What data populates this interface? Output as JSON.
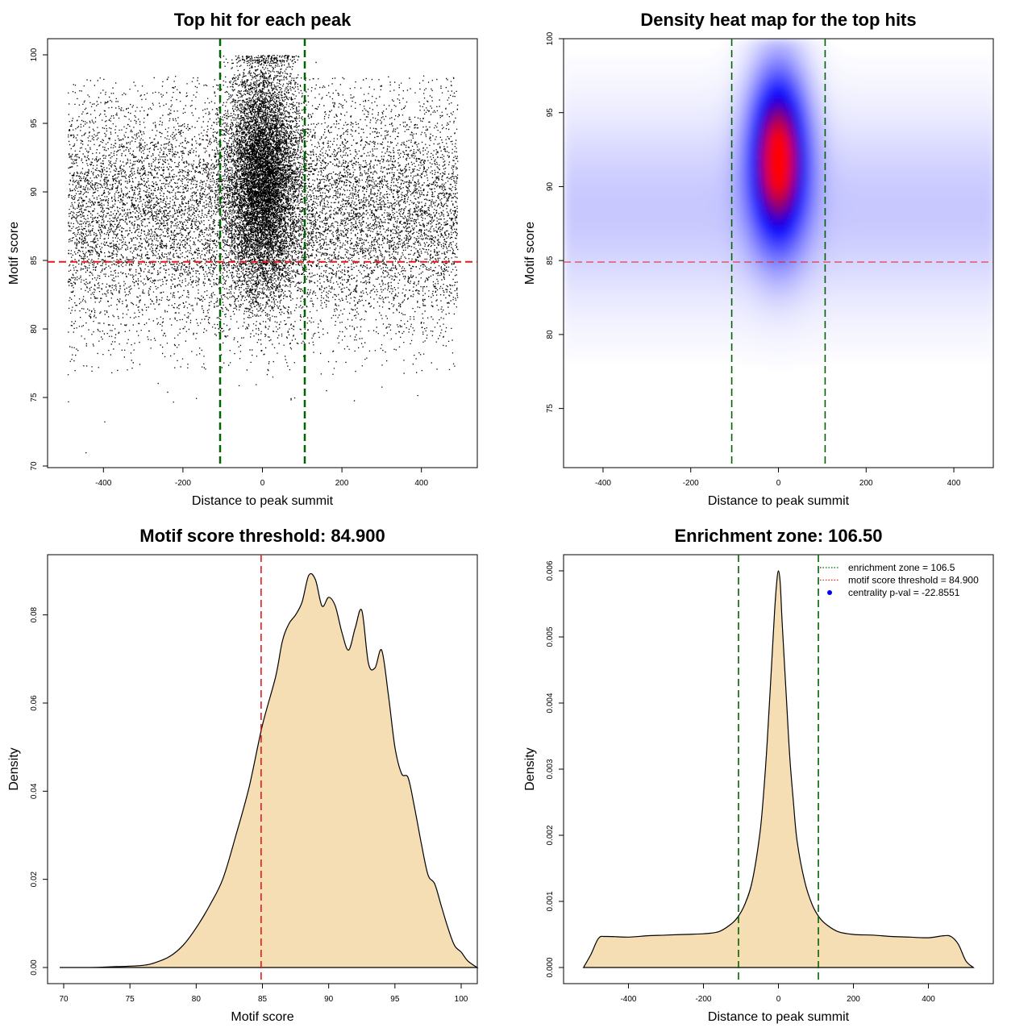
{
  "chart_data": [
    {
      "type": "scatter",
      "title": "Top hit for each peak",
      "xlabel": "Distance to peak summit",
      "ylabel": "Motif score",
      "xlim": [
        -500,
        500
      ],
      "ylim": [
        70,
        100
      ],
      "xticks": [
        -400,
        -200,
        0,
        200,
        400
      ],
      "yticks": [
        70,
        75,
        80,
        85,
        90,
        95,
        100
      ],
      "point_color": "#000000",
      "vlines": [
        {
          "x": -106.5,
          "color": "#006400"
        },
        {
          "x": 106.5,
          "color": "#006400"
        }
      ],
      "hlines": [
        {
          "y": 84.9,
          "color": "#e31a1c"
        }
      ],
      "distribution": {
        "background": {
          "x_range": [
            -490,
            490
          ],
          "score_mean": 88.5,
          "score_sd": 4.5
        },
        "central": {
          "x_mean": 0,
          "x_sd": 45,
          "score_mean": 91,
          "score_sd": 4.2
        },
        "outliers": [
          {
            "x": -445,
            "y": 71.0
          },
          {
            "x": -490,
            "y": 76.7
          },
          {
            "x": -225,
            "y": 74.7
          },
          {
            "x": -60,
            "y": 75.9
          },
          {
            "x": 80,
            "y": 75.0
          },
          {
            "x": 230,
            "y": 74.8
          },
          {
            "x": 400,
            "y": 77.0
          },
          {
            "x": 355,
            "y": 76.8
          },
          {
            "x": 300,
            "y": 77.4
          }
        ]
      }
    },
    {
      "type": "heatmap",
      "title": "Density heat map for the top hits",
      "xlabel": "Distance to peak summit",
      "ylabel": "Motif score",
      "xlim": [
        -490,
        490
      ],
      "ylim": [
        71,
        100
      ],
      "xticks": [
        -400,
        -200,
        0,
        200,
        400
      ],
      "yticks": [
        75,
        80,
        85,
        90,
        95,
        100
      ],
      "colors": [
        "#ffffff",
        "#0000ff",
        "#ff0000"
      ],
      "vlines": [
        {
          "x": -106.5,
          "color": "#006400"
        },
        {
          "x": 106.5,
          "color": "#006400"
        }
      ],
      "hlines": [
        {
          "y": 84.9,
          "color": "#e31a1c"
        }
      ],
      "density": {
        "background": {
          "score_mean": 88.5,
          "score_sd": 4.5
        },
        "central": {
          "x_mean": 0,
          "x_sd": 45,
          "score_mean": 92,
          "score_sd": 4.0
        }
      }
    },
    {
      "type": "area",
      "title": "Motif score threshold: 84.900",
      "xlabel": "Motif score",
      "ylabel": "Density",
      "xlim": [
        70,
        100
      ],
      "ylim": [
        0,
        0.09
      ],
      "xticks": [
        70,
        75,
        80,
        85,
        90,
        95,
        100
      ],
      "yticks": [
        0.0,
        0.02,
        0.04,
        0.06,
        0.08
      ],
      "ytick_labels": [
        "0.00",
        "0.02",
        "0.04",
        "0.06",
        "0.08"
      ],
      "fill_color": "#f5deb3",
      "line_color": "#000000",
      "vlines": [
        {
          "x": 84.9,
          "color": "#e31a1c"
        }
      ],
      "x": [
        69.7,
        72,
        74,
        76,
        77,
        78,
        79,
        80,
        81,
        82,
        83,
        84,
        85,
        86,
        86.5,
        87,
        87.5,
        88,
        88.5,
        89,
        89.5,
        90,
        90.5,
        91,
        91.5,
        92,
        92.5,
        93,
        93.5,
        94,
        94.5,
        95,
        95.5,
        96,
        96.5,
        97,
        97.5,
        98,
        98.5,
        99,
        99.5,
        100,
        100.5,
        101.2
      ],
      "y": [
        0.0,
        0.0,
        0.0002,
        0.0005,
        0.0012,
        0.0025,
        0.005,
        0.009,
        0.014,
        0.02,
        0.03,
        0.041,
        0.055,
        0.066,
        0.074,
        0.078,
        0.08,
        0.083,
        0.089,
        0.088,
        0.082,
        0.084,
        0.082,
        0.076,
        0.072,
        0.077,
        0.081,
        0.069,
        0.068,
        0.072,
        0.062,
        0.05,
        0.044,
        0.043,
        0.036,
        0.028,
        0.021,
        0.019,
        0.014,
        0.009,
        0.005,
        0.0035,
        0.0015,
        0.0
      ]
    },
    {
      "type": "area",
      "title": "Enrichment zone: 106.50",
      "xlabel": "Distance to peak summit",
      "ylabel": "Density",
      "xlim": [
        -530,
        530
      ],
      "ylim": [
        0,
        0.006
      ],
      "xticks": [
        -400,
        -200,
        0,
        200,
        400
      ],
      "yticks": [
        0.0,
        0.001,
        0.002,
        0.003,
        0.004,
        0.005,
        0.006
      ],
      "ytick_labels": [
        "0.000",
        "0.001",
        "0.002",
        "0.003",
        "0.004",
        "0.005",
        "0.006"
      ],
      "fill_color": "#f5deb3",
      "line_color": "#000000",
      "vlines": [
        {
          "x": -106.5,
          "color": "#006400"
        },
        {
          "x": 106.5,
          "color": "#006400"
        }
      ],
      "x": [
        -520,
        -500,
        -480,
        -460,
        -400,
        -350,
        -300,
        -250,
        -200,
        -160,
        -130,
        -110,
        -90,
        -70,
        -50,
        -40,
        -30,
        -20,
        -10,
        -5,
        0,
        5,
        10,
        20,
        30,
        40,
        50,
        70,
        90,
        110,
        130,
        160,
        200,
        250,
        300,
        350,
        400,
        440,
        460,
        480,
        500,
        520
      ],
      "y": [
        0.0,
        0.0002,
        0.00044,
        0.00047,
        0.00046,
        0.00048,
        0.00049,
        0.0005,
        0.00051,
        0.00054,
        0.00064,
        0.00075,
        0.00095,
        0.0013,
        0.002,
        0.0026,
        0.0034,
        0.0044,
        0.0054,
        0.0058,
        0.006,
        0.0058,
        0.0052,
        0.0042,
        0.0032,
        0.0025,
        0.0019,
        0.0013,
        0.00095,
        0.00075,
        0.00064,
        0.00054,
        0.0005,
        0.00049,
        0.00047,
        0.00046,
        0.00045,
        0.00048,
        0.00047,
        0.00035,
        0.0001,
        0.0
      ],
      "legend": {
        "position": "top-right",
        "entries": [
          {
            "label": "enrichment zone = 106.5",
            "symbol": "dotted-line",
            "color": "#006400"
          },
          {
            "label": "motif score threshold = 84.900",
            "symbol": "dotted-line",
            "color": "#e31a1c"
          },
          {
            "label": "centrality p-val = -22.8551",
            "symbol": "dot",
            "color": "#0000ff"
          }
        ]
      }
    }
  ]
}
